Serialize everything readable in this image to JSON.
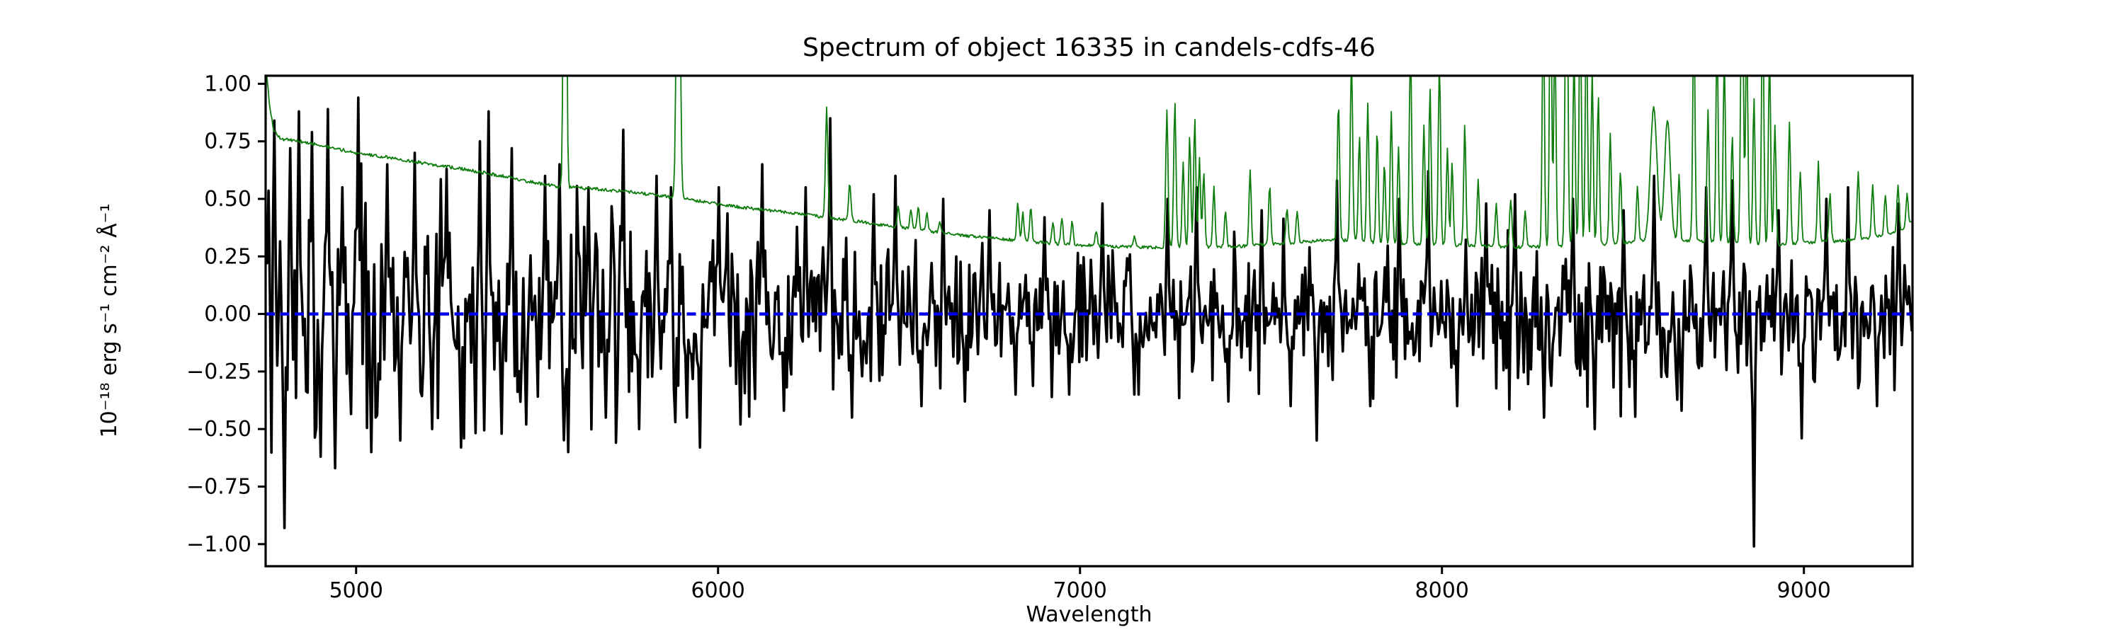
{
  "figure": {
    "title": "Spectrum of object 16335 in candels-cdfs-46",
    "xlabel": "Wavelength",
    "ylabel": "10⁻¹⁸ erg s⁻¹ cm⁻² Å⁻¹"
  },
  "chart_data": {
    "type": "line",
    "title": "Spectrum of object 16335 in candels-cdfs-46",
    "xlabel": "Wavelength",
    "ylabel": "10⁻¹⁸ erg s⁻¹ cm⁻² Å⁻¹",
    "xlim": [
      4750,
      9300
    ],
    "ylim": [
      -1.096,
      1.035
    ],
    "x_ticks": [
      5000,
      6000,
      7000,
      8000,
      9000
    ],
    "x_tick_labels": [
      "5000",
      "6000",
      "7000",
      "8000",
      "9000"
    ],
    "y_ticks": [
      1.0,
      0.75,
      0.5,
      0.25,
      0.0,
      -0.25,
      -0.5,
      -0.75,
      -1.0
    ],
    "y_tick_labels": [
      "1.00",
      "0.75",
      "0.50",
      "0.25",
      "0.00",
      "−0.25",
      "−0.50",
      "−0.75",
      "−1.00"
    ],
    "grid": false,
    "legend": null,
    "zero_line_value": 0.0,
    "colors": {
      "flux": "#000000",
      "noise": "#0e7d0e",
      "zero": "#0000ee"
    },
    "series": [
      {
        "name": "flux",
        "role": "flux",
        "color": "#000000",
        "linewidth": 3.6,
        "style": "solid",
        "description": "Observed object flux: noise around zero, amplitude shrinking from ~±0.6 at 4750 Å to ~±0.35 beyond 7000 Å",
        "sample_step": 4,
        "seed": 16335,
        "noise_sigma_points": [
          [
            4750,
            0.3
          ],
          [
            5000,
            0.27
          ],
          [
            5300,
            0.25
          ],
          [
            5600,
            0.23
          ],
          [
            5900,
            0.21
          ],
          [
            6200,
            0.19
          ],
          [
            6500,
            0.17
          ],
          [
            6800,
            0.15
          ],
          [
            7100,
            0.14
          ],
          [
            7400,
            0.14
          ],
          [
            7700,
            0.145
          ],
          [
            8000,
            0.145
          ],
          [
            8300,
            0.15
          ],
          [
            8600,
            0.155
          ],
          [
            8900,
            0.15
          ],
          [
            9100,
            0.145
          ],
          [
            9300,
            0.14
          ]
        ],
        "features": [
          [
            4775,
            0.84
          ],
          [
            4803,
            -0.93
          ],
          [
            4818,
            0.72
          ],
          [
            4842,
            0.88
          ],
          [
            4876,
            0.79
          ],
          [
            4900,
            -0.62
          ],
          [
            4922,
            0.89
          ],
          [
            4941,
            -0.67
          ],
          [
            4960,
            0.55
          ],
          [
            5004,
            0.94
          ],
          [
            5040,
            -0.6
          ],
          [
            5085,
            0.65
          ],
          [
            5120,
            -0.55
          ],
          [
            5160,
            0.7
          ],
          [
            5210,
            -0.5
          ],
          [
            5250,
            0.63
          ],
          [
            5290,
            -0.58
          ],
          [
            5340,
            0.75
          ],
          [
            5365,
            0.88
          ],
          [
            5400,
            -0.52
          ],
          [
            5430,
            0.72
          ],
          [
            5470,
            -0.48
          ],
          [
            5520,
            0.6
          ],
          [
            5560,
            0.65
          ],
          [
            5585,
            -0.6
          ],
          [
            5640,
            0.55
          ],
          [
            5690,
            -0.45
          ],
          [
            5738,
            0.8
          ],
          [
            5780,
            -0.5
          ],
          [
            5830,
            0.6
          ],
          [
            5870,
            0.55
          ],
          [
            5915,
            -0.45
          ],
          [
            5950,
            -0.58
          ],
          [
            6000,
            0.55
          ],
          [
            6060,
            -0.48
          ],
          [
            6120,
            0.65
          ],
          [
            6180,
            -0.42
          ],
          [
            6240,
            0.55
          ],
          [
            6310,
            0.85
          ],
          [
            6370,
            -0.45
          ],
          [
            6430,
            0.52
          ],
          [
            6490,
            0.6
          ],
          [
            6560,
            -0.4
          ],
          [
            6620,
            0.5
          ],
          [
            6680,
            -0.38
          ],
          [
            6750,
            0.45
          ],
          [
            6820,
            -0.35
          ],
          [
            6900,
            0.42
          ],
          [
            6970,
            -0.35
          ],
          [
            7060,
            0.48
          ],
          [
            7150,
            -0.35
          ],
          [
            7240,
            0.5
          ],
          [
            7320,
            0.55
          ],
          [
            7410,
            -0.38
          ],
          [
            7500,
            0.45
          ],
          [
            7580,
            -0.4
          ],
          [
            7655,
            -0.55
          ],
          [
            7710,
            0.58
          ],
          [
            7800,
            -0.4
          ],
          [
            7880,
            0.5
          ],
          [
            7960,
            0.62
          ],
          [
            8040,
            -0.4
          ],
          [
            8120,
            0.48
          ],
          [
            8200,
            0.52
          ],
          [
            8280,
            -0.45
          ],
          [
            8360,
            0.5
          ],
          [
            8420,
            -0.5
          ],
          [
            8500,
            0.45
          ],
          [
            8585,
            0.6
          ],
          [
            8660,
            -0.42
          ],
          [
            8730,
            0.55
          ],
          [
            8800,
            0.58
          ],
          [
            8861,
            -1.01
          ],
          [
            8930,
            0.45
          ],
          [
            8994,
            -0.54
          ],
          [
            9060,
            0.5
          ],
          [
            9120,
            0.55
          ],
          [
            9200,
            -0.4
          ],
          [
            9260,
            0.48
          ]
        ]
      },
      {
        "name": "noise-sky-spectrum",
        "role": "sky",
        "color": "#0e7d0e",
        "linewidth": 1.8,
        "style": "solid",
        "description": "Noise / sky spectrum: smooth continuum falling from ~0.76 to ~0.29 with bright OH/airglow emission lines, many clipped at the plot top",
        "sample_step": 2.5,
        "seed": 4646,
        "continuum_points": [
          [
            4750,
            1.1
          ],
          [
            4760,
            0.92
          ],
          [
            4772,
            0.8
          ],
          [
            4790,
            0.762
          ],
          [
            4850,
            0.748
          ],
          [
            4900,
            0.733
          ],
          [
            5000,
            0.7
          ],
          [
            5100,
            0.678
          ],
          [
            5200,
            0.652
          ],
          [
            5300,
            0.628
          ],
          [
            5400,
            0.6
          ],
          [
            5500,
            0.568
          ],
          [
            5560,
            0.553
          ],
          [
            5650,
            0.545
          ],
          [
            5750,
            0.532
          ],
          [
            5850,
            0.512
          ],
          [
            5950,
            0.49
          ],
          [
            6050,
            0.466
          ],
          [
            6150,
            0.448
          ],
          [
            6250,
            0.43
          ],
          [
            6350,
            0.41
          ],
          [
            6450,
            0.388
          ],
          [
            6550,
            0.366
          ],
          [
            6650,
            0.345
          ],
          [
            6750,
            0.33
          ],
          [
            6850,
            0.316
          ],
          [
            6950,
            0.303
          ],
          [
            7050,
            0.296
          ],
          [
            7150,
            0.29
          ],
          [
            7250,
            0.289
          ],
          [
            7350,
            0.29
          ],
          [
            7450,
            0.295
          ],
          [
            7550,
            0.305
          ],
          [
            7650,
            0.318
          ],
          [
            7720,
            0.322
          ],
          [
            7800,
            0.312
          ],
          [
            7900,
            0.303
          ],
          [
            8000,
            0.3
          ],
          [
            8100,
            0.296
          ],
          [
            8200,
            0.291
          ],
          [
            8300,
            0.292
          ],
          [
            8400,
            0.3
          ],
          [
            8500,
            0.31
          ],
          [
            8570,
            0.318
          ],
          [
            8640,
            0.322
          ],
          [
            8720,
            0.315
          ],
          [
            8800,
            0.308
          ],
          [
            8900,
            0.3
          ],
          [
            9000,
            0.308
          ],
          [
            9100,
            0.318
          ],
          [
            9200,
            0.335
          ],
          [
            9260,
            0.355
          ],
          [
            9300,
            0.4
          ]
        ],
        "sky_lines": [
          [
            5577,
            3.2,
            3.5
          ],
          [
            5890,
            2.4,
            4.5
          ],
          [
            6300,
            0.9,
            3.2
          ],
          [
            6364,
            0.57,
            3.2
          ],
          [
            6498,
            0.47,
            3
          ],
          [
            6533,
            0.46,
            3
          ],
          [
            6553,
            0.47,
            3
          ],
          [
            6577,
            0.44,
            3
          ],
          [
            6613,
            0.4,
            3
          ],
          [
            6828,
            0.48,
            3
          ],
          [
            6842,
            0.44,
            3
          ],
          [
            6864,
            0.47,
            3
          ],
          [
            6925,
            0.4,
            3
          ],
          [
            6950,
            0.42,
            3
          ],
          [
            6978,
            0.4,
            3
          ],
          [
            7045,
            0.36,
            3
          ],
          [
            7150,
            0.34,
            3
          ],
          [
            7240,
            0.88,
            3.2
          ],
          [
            7262,
            0.92,
            3.2
          ],
          [
            7285,
            0.66,
            3
          ],
          [
            7303,
            0.78,
            3
          ],
          [
            7317,
            0.85,
            3
          ],
          [
            7330,
            0.68,
            3
          ],
          [
            7342,
            0.62,
            3
          ],
          [
            7370,
            0.55,
            3
          ],
          [
            7402,
            0.45,
            3
          ],
          [
            7470,
            0.62,
            3
          ],
          [
            7524,
            0.56,
            3
          ],
          [
            7572,
            0.46,
            3
          ],
          [
            7600,
            0.44,
            3
          ],
          [
            7714,
            0.92,
            3.2
          ],
          [
            7750,
            1.12,
            3.2
          ],
          [
            7772,
            0.78,
            3
          ],
          [
            7795,
            0.92,
            3
          ],
          [
            7821,
            0.8,
            3
          ],
          [
            7841,
            0.66,
            3
          ],
          [
            7860,
            0.88,
            3
          ],
          [
            7880,
            0.72,
            3
          ],
          [
            7913,
            1.16,
            3.2
          ],
          [
            7950,
            0.82,
            3
          ],
          [
            7967,
            0.98,
            3
          ],
          [
            7993,
            1.08,
            3.2
          ],
          [
            8015,
            0.72,
            3
          ],
          [
            8028,
            0.66,
            3
          ],
          [
            8063,
            0.82,
            3
          ],
          [
            8100,
            0.58,
            3
          ],
          [
            8150,
            0.48,
            3
          ],
          [
            8190,
            0.5,
            3
          ],
          [
            8230,
            0.45,
            3
          ],
          [
            8280,
            1.35,
            3
          ],
          [
            8300,
            1.55,
            3
          ],
          [
            8312,
            1.25,
            3
          ],
          [
            8344,
            1.85,
            3.5
          ],
          [
            8365,
            1.15,
            3
          ],
          [
            8382,
            1.45,
            3
          ],
          [
            8399,
            1.35,
            3
          ],
          [
            8415,
            1.05,
            3
          ],
          [
            8432,
            0.95,
            3
          ],
          [
            8465,
            0.78,
            3
          ],
          [
            8493,
            0.62,
            3
          ],
          [
            8540,
            0.56,
            3
          ],
          [
            8585,
            0.9,
            9
          ],
          [
            8623,
            0.84,
            8
          ],
          [
            8655,
            0.6,
            3
          ],
          [
            8696,
            1.35,
            3
          ],
          [
            8735,
            0.88,
            3
          ],
          [
            8760,
            1.25,
            3
          ],
          [
            8780,
            1.12,
            3
          ],
          [
            8802,
            0.78,
            3
          ],
          [
            8829,
            1.65,
            3.5
          ],
          [
            8842,
            1.25,
            3
          ],
          [
            8862,
            0.95,
            3
          ],
          [
            8886,
            1.45,
            3
          ],
          [
            8905,
            1.15,
            3
          ],
          [
            8920,
            0.82,
            3
          ],
          [
            8960,
            0.84,
            3
          ],
          [
            8990,
            0.62,
            3
          ],
          [
            9040,
            0.66,
            3
          ],
          [
            9072,
            0.52,
            3
          ],
          [
            9150,
            0.62,
            3
          ],
          [
            9190,
            0.56,
            3
          ],
          [
            9225,
            0.52,
            3
          ],
          [
            9260,
            0.56,
            3
          ],
          [
            9285,
            0.52,
            3
          ]
        ]
      },
      {
        "name": "zero-line",
        "role": "zero",
        "color": "#0000ee",
        "linewidth": 4.5,
        "style": "dashed",
        "y": 0.0
      }
    ]
  }
}
